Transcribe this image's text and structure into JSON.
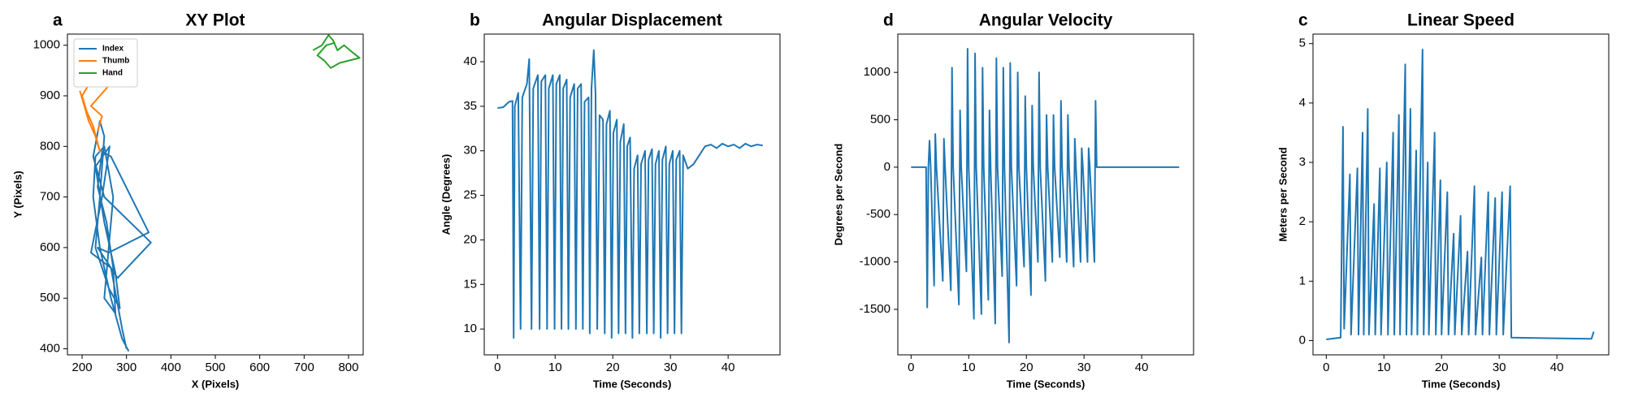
{
  "chart_data": [
    {
      "type": "line",
      "panel_label": "a",
      "title": "XY Plot",
      "x_label": "X (Pixels)",
      "y_label": "Y (Pixels)",
      "xlim": [
        167,
        833
      ],
      "ylim": [
        388,
        1022
      ],
      "xticks": [
        200,
        300,
        400,
        500,
        600,
        700,
        800
      ],
      "yticks": [
        400,
        500,
        600,
        700,
        800,
        900,
        1000
      ],
      "legend": "upper left",
      "series": [
        {
          "name": "Index",
          "color": "#1f77b4",
          "x": [
            305,
            290,
            265,
            240,
            225,
            230,
            250,
            270,
            260,
            250,
            275,
            270,
            255,
            235,
            245,
            265,
            350,
            260,
            235,
            280,
            355,
            250,
            225,
            240,
            250,
            240,
            230,
            260,
            285,
            275,
            250,
            230,
            262,
            245,
            220,
            265,
            290,
            300
          ],
          "values": [
            395,
            420,
            500,
            600,
            700,
            780,
            800,
            700,
            600,
            500,
            470,
            560,
            650,
            720,
            790,
            780,
            630,
            590,
            600,
            540,
            610,
            700,
            780,
            850,
            820,
            700,
            600,
            520,
            480,
            550,
            650,
            760,
            800,
            700,
            590,
            560,
            440,
            400
          ]
        },
        {
          "name": "Thumb",
          "color": "#ff7f0e",
          "x": [
            195,
            205,
            215,
            230,
            240,
            225,
            210,
            200,
            220,
            240,
            250,
            270,
            240,
            220,
            245,
            235
          ],
          "values": [
            910,
            880,
            850,
            820,
            790,
            840,
            870,
            900,
            930,
            920,
            940,
            930,
            900,
            880,
            860,
            830
          ]
        },
        {
          "name": "Hand",
          "color": "#2ca02c",
          "x": [
            720,
            740,
            755,
            765,
            775,
            790,
            810,
            825,
            780,
            760,
            745,
            730,
            750,
            770
          ],
          "values": [
            990,
            1000,
            1020,
            1010,
            990,
            1000,
            985,
            975,
            965,
            955,
            970,
            980,
            1000,
            1005
          ]
        }
      ]
    },
    {
      "type": "line",
      "panel_label": "b",
      "title": "Angular Displacement",
      "x_label": "Time (Seconds)",
      "y_label": "Angle (Degrees)",
      "xlim": [
        -2.3,
        49
      ],
      "ylim": [
        7.1,
        43.1
      ],
      "xticks": [
        0,
        10,
        20,
        30,
        40
      ],
      "yticks": [
        10,
        15,
        20,
        25,
        30,
        35,
        40
      ],
      "color": "#1f77b4",
      "x": [
        0,
        1,
        2,
        2.6,
        2.8,
        3.0,
        3.6,
        4.0,
        4.3,
        5.1,
        5.5,
        5.9,
        6.2,
        7.0,
        7.3,
        7.6,
        8.3,
        8.6,
        8.9,
        9.6,
        9.9,
        10.2,
        10.8,
        11.1,
        11.4,
        12.0,
        12.3,
        12.6,
        13.3,
        13.6,
        13.9,
        14.5,
        14.8,
        15.1,
        15.8,
        16.0,
        16.3,
        16.7,
        17.0,
        17.3,
        17.7,
        18.3,
        18.6,
        18.9,
        19.5,
        19.8,
        20.1,
        20.7,
        21.0,
        21.3,
        21.9,
        22.2,
        22.5,
        23.0,
        23.4,
        23.7,
        24.3,
        24.6,
        24.9,
        25.6,
        25.9,
        26.2,
        26.8,
        27.1,
        27.4,
        28.0,
        28.3,
        28.6,
        29.2,
        29.5,
        29.8,
        30.4,
        30.7,
        31.0,
        31.6,
        31.9,
        32.2,
        33,
        34,
        35,
        36,
        37,
        38,
        39,
        40,
        41,
        42,
        43,
        44,
        45,
        46
      ],
      "values": [
        34.8,
        34.9,
        35.5,
        35.6,
        9,
        35,
        36.5,
        10,
        36,
        37.5,
        40.3,
        10,
        37,
        38.5,
        10,
        37.8,
        38.5,
        10,
        37,
        38.5,
        10,
        37.5,
        38.5,
        10,
        37,
        38,
        10,
        36,
        37.5,
        10,
        37,
        37.5,
        10,
        35.5,
        36,
        9.5,
        37,
        41.3,
        36.5,
        10,
        34,
        33.5,
        9.5,
        33,
        34.5,
        9,
        32,
        33.5,
        9.5,
        31,
        33,
        9.5,
        30.5,
        31.5,
        9,
        28,
        29.5,
        9.5,
        28.5,
        30,
        9.5,
        29,
        30.2,
        9.5,
        28.5,
        30,
        9,
        29,
        30.5,
        9.5,
        28.5,
        30,
        9.5,
        29,
        30,
        9.5,
        29.5,
        28,
        28.5,
        29.5,
        30.5,
        30.7,
        30.3,
        30.8,
        30.5,
        30.7,
        30.3,
        30.8,
        30.5,
        30.7,
        30.6
      ]
    },
    {
      "type": "line",
      "panel_label": "d",
      "title": "Angular Velocity",
      "x_label": "Time (Seconds)",
      "y_label": "Degrees per Second",
      "xlim": [
        -2.3,
        49
      ],
      "ylim": [
        -1980,
        1404
      ],
      "xticks": [
        0,
        10,
        20,
        30,
        40
      ],
      "yticks": [
        -1500,
        -1000,
        -500,
        0,
        500,
        1000
      ],
      "color": "#1f77b4",
      "x": [
        0,
        2.6,
        2.8,
        3.0,
        3.2,
        3.4,
        4.0,
        4.2,
        4.4,
        5.5,
        5.7,
        5.9,
        6.9,
        7.1,
        7.3,
        8.3,
        8.5,
        8.7,
        9.6,
        9.8,
        10,
        10.9,
        11.1,
        11.3,
        12.2,
        12.4,
        12.6,
        13.4,
        13.6,
        13.8,
        14.6,
        14.8,
        15,
        15.8,
        16.0,
        16.2,
        17.0,
        17.2,
        17.4,
        18.3,
        18.5,
        18.7,
        19.6,
        19.8,
        20,
        20.8,
        21.0,
        21.2,
        22,
        22.2,
        22.4,
        23.3,
        23.5,
        23.7,
        24.5,
        24.7,
        24.9,
        25.8,
        26.0,
        26.2,
        27,
        27.2,
        27.4,
        28.2,
        28.4,
        28.6,
        29.4,
        29.6,
        29.8,
        30.6,
        30.8,
        31,
        31.8,
        32,
        32.2,
        46.5
      ],
      "values": [
        0,
        0,
        -1480,
        0,
        280,
        0,
        -1250,
        350,
        0,
        -1200,
        300,
        0,
        -1300,
        1050,
        0,
        -1450,
        600,
        0,
        -1100,
        1250,
        0,
        -1600,
        1200,
        0,
        -1550,
        1050,
        0,
        -1400,
        600,
        0,
        -1650,
        1150,
        0,
        -1150,
        1050,
        0,
        -1850,
        1100,
        0,
        -1250,
        1000,
        0,
        -1050,
        750,
        0,
        -1350,
        650,
        0,
        -1000,
        1000,
        0,
        -1200,
        550,
        0,
        -1000,
        550,
        0,
        -950,
        700,
        0,
        -1000,
        550,
        0,
        -1050,
        300,
        0,
        -1000,
        200,
        0,
        -1000,
        200,
        0,
        -1000,
        700,
        0,
        0
      ]
    },
    {
      "type": "line",
      "panel_label": "c",
      "title": "Linear Speed",
      "x_label": "Time (Seconds)",
      "y_label": "Meters per Second",
      "xlim": [
        -2.3,
        49
      ],
      "ylim": [
        -0.24,
        5.16
      ],
      "xticks": [
        0,
        10,
        20,
        30,
        40
      ],
      "yticks": [
        0,
        1,
        2,
        3,
        4,
        5
      ],
      "color": "#1f77b4",
      "x": [
        0,
        2.5,
        2.9,
        3.1,
        4.1,
        4.3,
        5.4,
        5.6,
        6.3,
        6.5,
        7.2,
        7.4,
        8.3,
        8.5,
        9.3,
        9.5,
        10.5,
        10.7,
        11.6,
        11.8,
        12.6,
        12.8,
        13.7,
        13.9,
        14.6,
        14.8,
        15.6,
        15.8,
        16.7,
        16.9,
        17.6,
        17.8,
        18.8,
        19.0,
        19.8,
        20,
        21,
        21.2,
        22.1,
        22.3,
        23.3,
        23.5,
        24.5,
        24.7,
        25.7,
        25.9,
        26.9,
        27.1,
        28.1,
        28.3,
        29.3,
        29.5,
        30.5,
        30.7,
        31.9,
        32.1,
        46,
        46.4
      ],
      "values": [
        0.02,
        0.05,
        3.6,
        0.2,
        2.8,
        0.1,
        2.9,
        0.1,
        3.5,
        0.1,
        3.9,
        0.1,
        2.3,
        0.1,
        2.9,
        0.1,
        3.0,
        0.1,
        3.5,
        0.1,
        3.8,
        0.1,
        4.65,
        0.1,
        3.9,
        0.1,
        3.2,
        0.1,
        4.9,
        0.1,
        3.0,
        0.1,
        3.5,
        0.1,
        2.7,
        0.1,
        2.5,
        0.1,
        1.8,
        0.1,
        2.1,
        0.1,
        1.5,
        0.1,
        2.6,
        0.1,
        1.4,
        0.1,
        2.5,
        0.1,
        2.4,
        0.1,
        2.5,
        0.1,
        2.6,
        0.05,
        0.03,
        0.15
      ]
    }
  ]
}
